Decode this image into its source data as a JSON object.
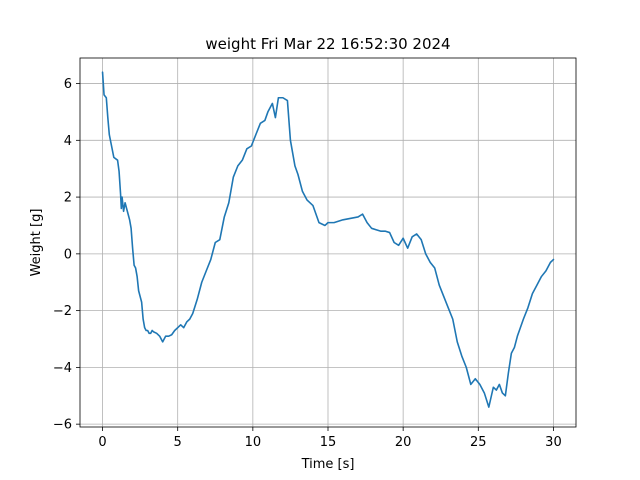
{
  "chart_data": {
    "type": "line",
    "title": "weight Fri Mar 22 16:52:30 2024",
    "xlabel": "Time [s]",
    "ylabel": "Weight [g]",
    "xlim": [
      -1.5,
      31.5
    ],
    "ylim": [
      -6.1,
      6.9
    ],
    "xticks": [
      0,
      5,
      10,
      15,
      20,
      25,
      30
    ],
    "xtick_labels": [
      "0",
      "5",
      "10",
      "15",
      "20",
      "25",
      "30"
    ],
    "yticks": [
      -6,
      -4,
      -2,
      0,
      2,
      4,
      6
    ],
    "ytick_labels": [
      "−6",
      "−4",
      "−2",
      "0",
      "2",
      "4",
      "6"
    ],
    "grid": true,
    "series": [
      {
        "color": "#1f77b4",
        "x": [
          0.0,
          0.1,
          0.25,
          0.35,
          0.45,
          0.6,
          0.75,
          1.0,
          1.1,
          1.2,
          1.25,
          1.3,
          1.4,
          1.5,
          1.6,
          1.7,
          1.8,
          1.9,
          2.0,
          2.1,
          2.2,
          2.3,
          2.4,
          2.5,
          2.6,
          2.7,
          2.8,
          2.9,
          3.0,
          3.1,
          3.2,
          3.3,
          3.4,
          3.6,
          3.8,
          4.0,
          4.2,
          4.4,
          4.6,
          4.8,
          5.0,
          5.2,
          5.4,
          5.6,
          5.8,
          6.0,
          6.3,
          6.6,
          6.9,
          7.2,
          7.5,
          7.8,
          8.1,
          8.4,
          8.7,
          9.0,
          9.3,
          9.6,
          9.9,
          10.2,
          10.5,
          10.8,
          11.0,
          11.3,
          11.5,
          11.7,
          12.0,
          12.3,
          12.5,
          12.8,
          13.0,
          13.3,
          13.6,
          14.0,
          14.4,
          14.8,
          15.0,
          15.2,
          15.4,
          16.0,
          17.0,
          17.3,
          17.6,
          17.9,
          18.2,
          18.5,
          18.8,
          19.1,
          19.4,
          19.7,
          20.0,
          20.3,
          20.6,
          20.9,
          21.2,
          21.5,
          21.8,
          22.1,
          22.4,
          22.7,
          23.0,
          23.3,
          23.6,
          23.9,
          24.2,
          24.5,
          24.8,
          25.1,
          25.4,
          25.7,
          26.0,
          26.2,
          26.4,
          26.6,
          26.8,
          27.0,
          27.2,
          27.4,
          27.6,
          27.8,
          28.0,
          28.3,
          28.6,
          28.9,
          29.2,
          29.5,
          29.8,
          30.0
        ],
        "values": [
          6.4,
          5.6,
          5.5,
          4.8,
          4.2,
          3.8,
          3.4,
          3.3,
          2.9,
          2.1,
          1.6,
          2.0,
          1.5,
          1.8,
          1.6,
          1.4,
          1.2,
          0.9,
          0.2,
          -0.4,
          -0.5,
          -0.8,
          -1.3,
          -1.5,
          -1.7,
          -2.3,
          -2.6,
          -2.7,
          -2.7,
          -2.8,
          -2.8,
          -2.7,
          -2.75,
          -2.8,
          -2.9,
          -3.1,
          -2.9,
          -2.9,
          -2.85,
          -2.7,
          -2.6,
          -2.5,
          -2.6,
          -2.4,
          -2.3,
          -2.1,
          -1.6,
          -1.0,
          -0.6,
          -0.2,
          0.4,
          0.5,
          1.3,
          1.8,
          2.7,
          3.1,
          3.3,
          3.7,
          3.8,
          4.2,
          4.6,
          4.7,
          5.0,
          5.3,
          4.8,
          5.5,
          5.5,
          5.4,
          4.0,
          3.1,
          2.8,
          2.2,
          1.9,
          1.7,
          1.1,
          1.0,
          1.1,
          1.1,
          1.1,
          1.2,
          1.3,
          1.4,
          1.1,
          0.9,
          0.85,
          0.8,
          0.8,
          0.75,
          0.4,
          0.3,
          0.55,
          0.2,
          0.6,
          0.7,
          0.5,
          0.0,
          -0.3,
          -0.5,
          -1.1,
          -1.5,
          -1.9,
          -2.3,
          -3.1,
          -3.6,
          -4.0,
          -4.6,
          -4.4,
          -4.6,
          -4.9,
          -5.4,
          -4.7,
          -4.8,
          -4.6,
          -4.9,
          -5.0,
          -4.2,
          -3.5,
          -3.3,
          -2.9,
          -2.6,
          -2.3,
          -1.9,
          -1.4,
          -1.1,
          -0.8,
          -0.6,
          -0.3,
          -0.2
        ]
      }
    ]
  }
}
